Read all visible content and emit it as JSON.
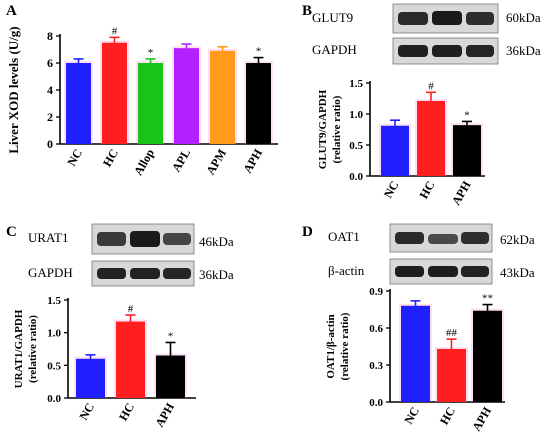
{
  "panels": {
    "A": {
      "letter": "A"
    },
    "B": {
      "letter": "B",
      "blots": [
        {
          "name": "GLUT9",
          "kda": "60kDa"
        },
        {
          "name": "GAPDH",
          "kda": "36kDa"
        }
      ]
    },
    "C": {
      "letter": "C",
      "blots": [
        {
          "name": "URAT1",
          "kda": "46kDa"
        },
        {
          "name": "GAPDH",
          "kda": "36kDa"
        }
      ]
    },
    "D": {
      "letter": "D",
      "blots": [
        {
          "name": "OAT1",
          "kda": "62kDa"
        },
        {
          "name": "β-actin",
          "kda": "43kDa"
        }
      ]
    }
  },
  "colors": {
    "NC": "#1f1fff",
    "HC": "#ff1f1f",
    "Allop": "#19c419",
    "APL": "#b31fff",
    "APM": "#ff9a1a",
    "APH": "#000000",
    "highlight": "#ff6ec7"
  },
  "chart_data": [
    {
      "panel": "A",
      "type": "bar",
      "categories": [
        "NC",
        "HC",
        "Allop",
        "APL",
        "APM",
        "APH"
      ],
      "values": [
        6.0,
        7.5,
        6.0,
        7.1,
        6.9,
        6.0
      ],
      "errors": [
        0.3,
        0.4,
        0.3,
        0.3,
        0.3,
        0.4
      ],
      "annotations": [
        "",
        "#",
        "*",
        "",
        "",
        "*"
      ],
      "title": "",
      "xlabel": "",
      "ylabel": "Liver XOD levels (U/g)",
      "ylim": [
        0,
        8
      ],
      "yticks": [
        0,
        2,
        4,
        6,
        8
      ],
      "grid": false
    },
    {
      "panel": "B",
      "type": "bar",
      "categories": [
        "NC",
        "HC",
        "APH"
      ],
      "values": [
        0.81,
        1.21,
        0.82
      ],
      "errors": [
        0.09,
        0.14,
        0.06
      ],
      "annotations": [
        "",
        "#",
        "*"
      ],
      "title": "",
      "xlabel": "",
      "ylabel": "GLUT9/GAPDH",
      "ylabel2": "(relative ratio)",
      "ylim": [
        0,
        1.5
      ],
      "yticks": [
        "0.0",
        "0.5",
        "1.0",
        "1.5"
      ],
      "grid": false
    },
    {
      "panel": "C",
      "type": "bar",
      "categories": [
        "NC",
        "HC",
        "APH"
      ],
      "values": [
        0.6,
        1.17,
        0.65
      ],
      "errors": [
        0.06,
        0.1,
        0.2
      ],
      "annotations": [
        "",
        "#",
        "*"
      ],
      "title": "",
      "xlabel": "",
      "ylabel": "URAT1/GAPDH",
      "ylabel2": "(relative ratio)",
      "ylim": [
        0,
        1.5
      ],
      "yticks": [
        "0.0",
        "0.5",
        "1.0",
        "1.5"
      ],
      "grid": false
    },
    {
      "panel": "D",
      "type": "bar",
      "categories": [
        "NC",
        "HC",
        "APH"
      ],
      "values": [
        0.78,
        0.43,
        0.74
      ],
      "errors": [
        0.04,
        0.08,
        0.05
      ],
      "annotations": [
        "",
        "##",
        "**"
      ],
      "title": "",
      "xlabel": "",
      "ylabel": "OAT1/β-actin",
      "ylabel2": "(relative ratio)",
      "ylim": [
        0,
        0.9
      ],
      "yticks": [
        "0.0",
        "0.3",
        "0.6",
        "0.9"
      ],
      "grid": false
    }
  ]
}
